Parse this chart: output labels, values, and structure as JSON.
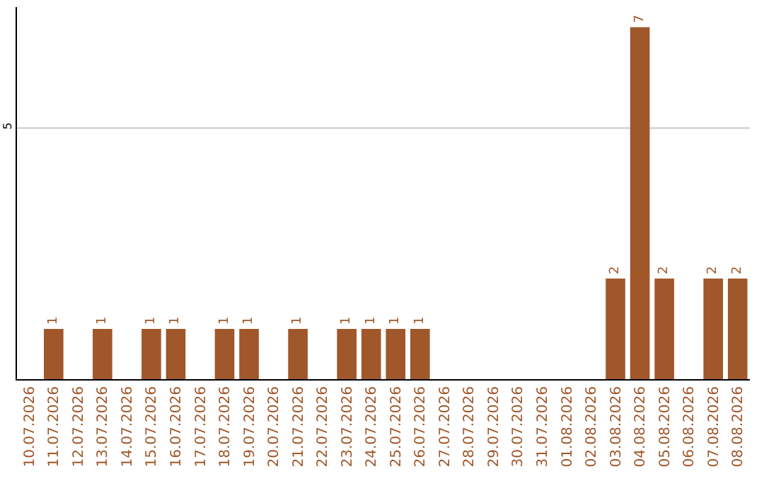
{
  "chart_data": {
    "type": "bar",
    "categories": [
      "10.07.2026",
      "11.07.2026",
      "12.07.2026",
      "13.07.2026",
      "14.07.2026",
      "15.07.2026",
      "16.07.2026",
      "17.07.2026",
      "18.07.2026",
      "19.07.2026",
      "20.07.2026",
      "21.07.2026",
      "22.07.2026",
      "23.07.2026",
      "24.07.2026",
      "25.07.2026",
      "26.07.2026",
      "27.07.2026",
      "28.07.2026",
      "29.07.2026",
      "30.07.2026",
      "31.07.2026",
      "01.08.2026",
      "02.08.2026",
      "03.08.2026",
      "04.08.2026",
      "05.08.2026",
      "06.08.2026",
      "07.08.2026",
      "08.08.2026"
    ],
    "values": [
      0,
      1,
      0,
      1,
      0,
      1,
      1,
      0,
      1,
      1,
      0,
      1,
      0,
      1,
      1,
      1,
      1,
      0,
      0,
      0,
      0,
      0,
      0,
      0,
      2,
      7,
      2,
      0,
      2,
      2
    ],
    "value_labels": [
      null,
      "1",
      null,
      "1",
      null,
      "1",
      "1",
      null,
      "1",
      "1",
      null,
      "1",
      null,
      "1",
      "1",
      "1",
      "1",
      null,
      null,
      null,
      null,
      null,
      null,
      null,
      "2",
      "7",
      "2",
      null,
      "2",
      "2"
    ],
    "color": "#a0572a",
    "ylim": [
      0,
      7.4
    ],
    "yticks": [
      5
    ],
    "grid": "y",
    "legend": false
  }
}
